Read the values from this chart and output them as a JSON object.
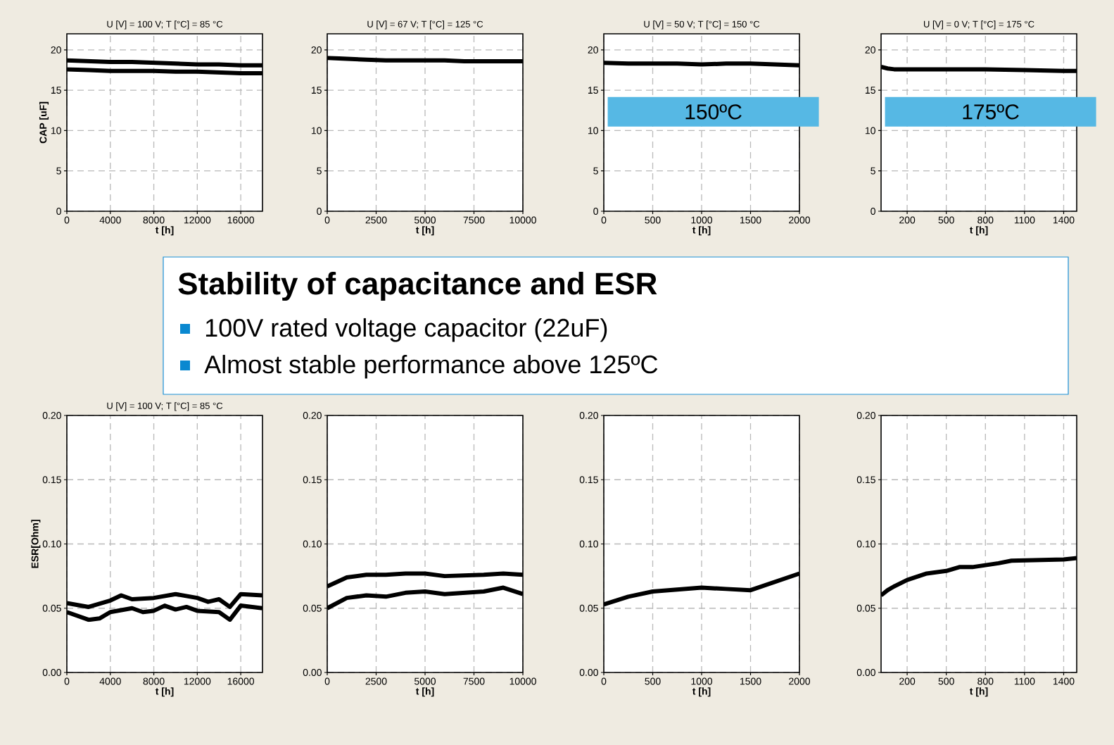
{
  "chart_data": [
    {
      "type": "line",
      "title": "U [V] = 100 V; T [°C] = 85 °C",
      "xlabel": "t [h]",
      "ylabel": "CAP [uF]",
      "xlim": [
        0,
        18000
      ],
      "ylim": [
        0,
        22
      ],
      "xticks": [
        0,
        4000,
        8000,
        12000,
        16000
      ],
      "yticks": [
        0,
        5,
        10,
        15,
        20
      ],
      "grid": true,
      "series": [
        {
          "color": "#000000",
          "x": [
            0,
            2000,
            4000,
            6000,
            8000,
            10000,
            12000,
            14000,
            16000,
            18000
          ],
          "values": [
            18.7,
            18.6,
            18.5,
            18.5,
            18.4,
            18.3,
            18.2,
            18.2,
            18.1,
            18.1
          ]
        },
        {
          "color": "#000000",
          "x": [
            0,
            2000,
            4000,
            6000,
            8000,
            10000,
            12000,
            14000,
            16000,
            18000
          ],
          "values": [
            17.6,
            17.5,
            17.4,
            17.4,
            17.4,
            17.3,
            17.3,
            17.2,
            17.1,
            17.1
          ]
        }
      ]
    },
    {
      "type": "line",
      "title": "U [V] = 67 V; T [°C] = 125 °C",
      "xlabel": "t [h]",
      "xlim": [
        0,
        10000
      ],
      "ylim": [
        0,
        22
      ],
      "xticks": [
        0,
        2500,
        5000,
        7500,
        10000
      ],
      "yticks": [
        0,
        5,
        10,
        15,
        20
      ],
      "grid": true,
      "series": [
        {
          "color": "#000000",
          "x": [
            0,
            1000,
            2000,
            3000,
            4000,
            5000,
            6000,
            7000,
            8000,
            9000,
            10000
          ],
          "values": [
            19.0,
            18.9,
            18.8,
            18.7,
            18.7,
            18.7,
            18.7,
            18.6,
            18.6,
            18.6,
            18.6
          ]
        }
      ]
    },
    {
      "type": "line",
      "title": "U [V] = 50 V; T [°C] = 150 °C",
      "xlabel": "t [h]",
      "xlim": [
        0,
        2000
      ],
      "ylim": [
        0,
        22
      ],
      "xticks": [
        0,
        500,
        1000,
        1500,
        2000
      ],
      "yticks": [
        0,
        5,
        10,
        15,
        20
      ],
      "grid": true,
      "annotations": [
        "150ºC"
      ],
      "series": [
        {
          "color": "#000000",
          "x": [
            0,
            250,
            500,
            750,
            1000,
            1250,
            1500,
            1750,
            2000
          ],
          "values": [
            18.4,
            18.3,
            18.3,
            18.3,
            18.2,
            18.3,
            18.3,
            18.2,
            18.1
          ]
        }
      ]
    },
    {
      "type": "line",
      "title": "U [V] = 0 V; T [°C] = 175 °C",
      "xlabel": "t [h]",
      "xlim": [
        0,
        1500
      ],
      "ylim": [
        0,
        22
      ],
      "xticks": [
        200,
        500,
        800,
        1100,
        1400
      ],
      "yticks": [
        0,
        5,
        10,
        15,
        20
      ],
      "grid": true,
      "annotations": [
        "175ºC"
      ],
      "series": [
        {
          "color": "#000000",
          "x": [
            0,
            50,
            100,
            200,
            500,
            800,
            1100,
            1400,
            1500
          ],
          "values": [
            17.9,
            17.7,
            17.6,
            17.6,
            17.6,
            17.6,
            17.5,
            17.4,
            17.4
          ]
        }
      ]
    },
    {
      "type": "line",
      "title": "U [V] = 100 V; T [°C] = 85 °C",
      "xlabel": "t [h]",
      "ylabel": "ESR[Ohm]",
      "xlim": [
        0,
        18000
      ],
      "ylim": [
        0,
        0.2
      ],
      "xticks": [
        0,
        4000,
        8000,
        12000,
        16000
      ],
      "yticks": [
        {
          "value": 0,
          "label": "0.00"
        },
        {
          "value": 0.05,
          "label": "0.05"
        },
        {
          "value": 0.1,
          "label": "0.10"
        },
        {
          "value": 0.15,
          "label": "0.15"
        },
        {
          "value": 0.2,
          "label": "0.20"
        }
      ],
      "grid": true,
      "series": [
        {
          "color": "#000000",
          "x": [
            0,
            2000,
            4000,
            5000,
            6000,
            8000,
            10000,
            12000,
            13000,
            14000,
            15000,
            16000,
            18000
          ],
          "values": [
            0.054,
            0.051,
            0.056,
            0.06,
            0.057,
            0.058,
            0.061,
            0.058,
            0.055,
            0.057,
            0.051,
            0.061,
            0.06
          ]
        },
        {
          "color": "#000000",
          "x": [
            0,
            2000,
            3000,
            4000,
            6000,
            7000,
            8000,
            9000,
            10000,
            11000,
            12000,
            14000,
            15000,
            16000,
            18000
          ],
          "values": [
            0.047,
            0.041,
            0.042,
            0.047,
            0.05,
            0.047,
            0.048,
            0.052,
            0.049,
            0.051,
            0.048,
            0.047,
            0.041,
            0.052,
            0.05
          ]
        }
      ]
    },
    {
      "type": "line",
      "xlabel": "t [h]",
      "xlim": [
        0,
        10000
      ],
      "ylim": [
        0,
        0.2
      ],
      "xticks": [
        0,
        2500,
        5000,
        7500,
        10000
      ],
      "yticks": [
        {
          "value": 0,
          "label": "0.00"
        },
        {
          "value": 0.05,
          "label": "0.05"
        },
        {
          "value": 0.1,
          "label": "0.10"
        },
        {
          "value": 0.15,
          "label": "0.15"
        },
        {
          "value": 0.2,
          "label": "0.20"
        }
      ],
      "grid": true,
      "series": [
        {
          "color": "#000000",
          "x": [
            0,
            1000,
            2000,
            3000,
            4000,
            5000,
            6000,
            8000,
            9000,
            10000
          ],
          "values": [
            0.067,
            0.074,
            0.076,
            0.076,
            0.077,
            0.077,
            0.075,
            0.076,
            0.077,
            0.076
          ]
        },
        {
          "color": "#000000",
          "x": [
            0,
            1000,
            2000,
            3000,
            4000,
            5000,
            6000,
            8000,
            9000,
            10000
          ],
          "values": [
            0.05,
            0.058,
            0.06,
            0.059,
            0.062,
            0.063,
            0.061,
            0.063,
            0.066,
            0.061
          ]
        }
      ]
    },
    {
      "type": "line",
      "xlabel": "t [h]",
      "xlim": [
        0,
        2000
      ],
      "ylim": [
        0,
        0.2
      ],
      "xticks": [
        0,
        500,
        1000,
        1500,
        2000
      ],
      "yticks": [
        {
          "value": 0,
          "label": "0.00"
        },
        {
          "value": 0.05,
          "label": "0.05"
        },
        {
          "value": 0.1,
          "label": "0.10"
        },
        {
          "value": 0.15,
          "label": "0.15"
        },
        {
          "value": 0.2,
          "label": "0.20"
        }
      ],
      "grid": true,
      "series": [
        {
          "color": "#000000",
          "x": [
            0,
            250,
            500,
            1000,
            1250,
            1500,
            2000
          ],
          "values": [
            0.053,
            0.059,
            0.063,
            0.066,
            0.065,
            0.064,
            0.077
          ]
        }
      ]
    },
    {
      "type": "line",
      "xlabel": "t [h]",
      "xlim": [
        0,
        1500
      ],
      "ylim": [
        0,
        0.2
      ],
      "xticks": [
        200,
        500,
        800,
        1100,
        1400
      ],
      "yticks": [
        {
          "value": 0,
          "label": "0.00"
        },
        {
          "value": 0.05,
          "label": "0.05"
        },
        {
          "value": 0.1,
          "label": "0.10"
        },
        {
          "value": 0.15,
          "label": "0.15"
        },
        {
          "value": 0.2,
          "label": "0.20"
        }
      ],
      "grid": true,
      "series": [
        {
          "color": "#000000",
          "x": [
            0,
            50,
            100,
            200,
            350,
            500,
            600,
            700,
            900,
            1000,
            1400,
            1500
          ],
          "values": [
            0.06,
            0.064,
            0.067,
            0.072,
            0.077,
            0.079,
            0.082,
            0.082,
            0.085,
            0.087,
            0.088,
            0.089
          ]
        }
      ]
    },
    {
      "type": "other",
      "title": "Stability of capacitance and ESR",
      "annotations": [
        "100V rated voltage capacitor (22uF)",
        "Almost stable performance above 125ºC"
      ]
    }
  ]
}
